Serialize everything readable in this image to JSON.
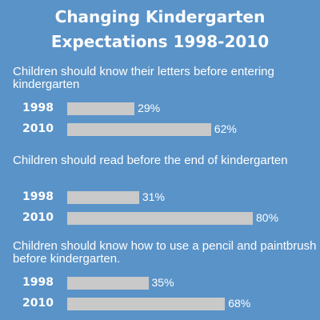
{
  "title": {
    "line1": "Changing Kindergarten",
    "line2": "Expectations 1998-2010"
  },
  "chart_data": {
    "type": "bar",
    "orientation": "horizontal",
    "title": "Changing Kindergarten Expectations 1998-2010",
    "bar_color": "#c9c9c9",
    "background_color": "#5a93c8",
    "unit": "%",
    "xlim": [
      0,
      100
    ],
    "groups": [
      {
        "question": "Children should know their letters before entering kindergarten",
        "rows": [
          {
            "year": "1998",
            "value": 29,
            "label": "29%"
          },
          {
            "year": "2010",
            "value": 62,
            "label": "62%"
          }
        ]
      },
      {
        "question": "Children should read before the end of kindergarten",
        "rows": [
          {
            "year": "1998",
            "value": 31,
            "label": "31%"
          },
          {
            "year": "2010",
            "value": 80,
            "label": "80%"
          }
        ]
      },
      {
        "question": "Children should know how to use a pencil and paintbrush before kindergarten.",
        "rows": [
          {
            "year": "1998",
            "value": 35,
            "label": "35%"
          },
          {
            "year": "2010",
            "value": 68,
            "label": "68%"
          }
        ]
      }
    ]
  }
}
